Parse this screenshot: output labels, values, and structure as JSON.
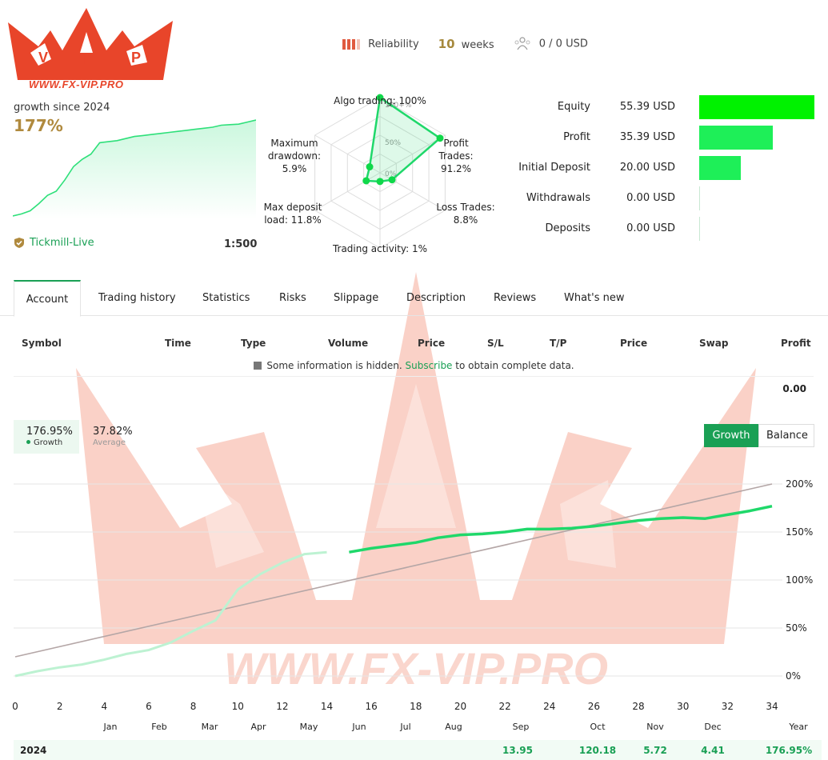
{
  "logo": {
    "text": "WWW.FX-VIP.PRO",
    "letters": [
      "V",
      "I",
      "P"
    ]
  },
  "header": {
    "reliability_label": "Reliability",
    "weeks_value": "10",
    "weeks_label": "weeks",
    "subscribers_text": "0 / 0 USD"
  },
  "growth": {
    "label": "growth since 2024",
    "value": "177%",
    "mini_series": [
      0,
      2,
      5,
      12,
      20,
      24,
      35,
      48,
      55,
      60,
      71,
      72,
      73,
      75,
      77,
      78,
      79,
      80,
      81,
      82,
      83,
      84,
      85,
      86,
      88,
      88.5,
      89,
      91,
      93
    ]
  },
  "broker": {
    "name": "Tickmill-Live",
    "leverage": "1:500"
  },
  "radar": {
    "axes": [
      {
        "label": "Algo trading: 100%",
        "value": 100
      },
      {
        "label": "Profit Trades: 91.2%",
        "value": 91.2
      },
      {
        "label": "Loss Trades: 8.8%",
        "value": 8.8
      },
      {
        "label": "Trading activity: 1%",
        "value": 1
      },
      {
        "label": "Max deposit load: 11.8%",
        "value": 11.8
      },
      {
        "label": "Maximum drawdown: 5.9%",
        "value": 5.9
      }
    ],
    "ring_labels": [
      "100+%",
      "50%",
      "0%"
    ],
    "labels": {
      "algo": "Algo trading: 100%",
      "profit_l1": "Profit",
      "profit_l2": "Trades:",
      "profit_l3": "91.2%",
      "loss_l1": "Loss Trades:",
      "loss_l2": "8.8%",
      "activity": "Trading activity: 1%",
      "load_l1": "Max deposit",
      "load_l2": "load: 11.8%",
      "dd_l1": "Maximum",
      "dd_l2": "drawdown:",
      "dd_l3": "5.9%"
    }
  },
  "finance": [
    {
      "label": "Equity",
      "value": "55.39 USD",
      "amount": 55.39,
      "color": "#00f200"
    },
    {
      "label": "Profit",
      "value": "35.39 USD",
      "amount": 35.39,
      "color": "#1eef58"
    },
    {
      "label": "Initial Deposit",
      "value": "20.00 USD",
      "amount": 20.0,
      "color": "#1eef58"
    },
    {
      "label": "Withdrawals",
      "value": "0.00 USD",
      "amount": 0,
      "color": "#1eef58"
    },
    {
      "label": "Deposits",
      "value": "0.00 USD",
      "amount": 0,
      "color": "#1eef58"
    }
  ],
  "tabs": [
    "Account",
    "Trading history",
    "Statistics",
    "Risks",
    "Slippage",
    "Description",
    "Reviews",
    "What's new"
  ],
  "table": {
    "headers": [
      "Symbol",
      "Time",
      "Type",
      "Volume",
      "Price",
      "S/L",
      "T/P",
      "Price",
      "Swap",
      "Profit"
    ],
    "hidden_note_pre": "Some information is hidden.",
    "hidden_note_link": "Subscribe",
    "hidden_note_post": "to obtain complete data.",
    "total_profit": "0.00"
  },
  "chart_legend": {
    "growth_value": "176.95%",
    "growth_name": "Growth",
    "average_value": "37.82%",
    "average_name": "Average"
  },
  "toggle": {
    "growth": "Growth",
    "balance": "Balance"
  },
  "colors": {
    "accent": "#1aa055",
    "growth_line": "#1fd86a",
    "average_line": "#b4a6a6"
  },
  "chart_data": {
    "type": "line",
    "x_ticks": [
      "0",
      "2",
      "4",
      "6",
      "8",
      "10",
      "12",
      "14",
      "16",
      "18",
      "20",
      "22",
      "24",
      "26",
      "28",
      "30",
      "32",
      "34"
    ],
    "y_ticks": [
      "200%",
      "150%",
      "100%",
      "50%",
      "0%"
    ],
    "months": [
      "Jan",
      "Feb",
      "Mar",
      "Apr",
      "May",
      "Jun",
      "Jul",
      "Aug",
      "Sep",
      "Oct",
      "Nov",
      "Dec",
      "Year"
    ],
    "xlim": [
      0,
      34
    ],
    "ylim": [
      0,
      200
    ],
    "series": [
      {
        "name": "Growth",
        "x": [
          0,
          1,
          2,
          3,
          4,
          5,
          6,
          7,
          8,
          9,
          10,
          11,
          12,
          13,
          14,
          15,
          16,
          17,
          18,
          19,
          20,
          21,
          22,
          23,
          24,
          25,
          26,
          27,
          28,
          29,
          30,
          31,
          32,
          33,
          34
        ],
        "y": [
          0,
          5,
          9,
          12,
          17,
          23,
          27,
          35,
          47,
          58,
          90,
          106,
          118,
          127,
          129,
          129,
          133,
          136,
          139,
          144,
          147,
          148,
          150,
          153,
          153,
          154,
          156,
          159,
          162,
          164,
          165,
          164,
          168,
          172,
          176.95
        ]
      },
      {
        "name": "Average",
        "x": [
          0,
          34
        ],
        "y": [
          20,
          200
        ]
      }
    ]
  },
  "year_row": {
    "year": "2024",
    "values": [
      "13.95",
      "120.18",
      "5.72",
      "4.41",
      "176.95%"
    ]
  }
}
